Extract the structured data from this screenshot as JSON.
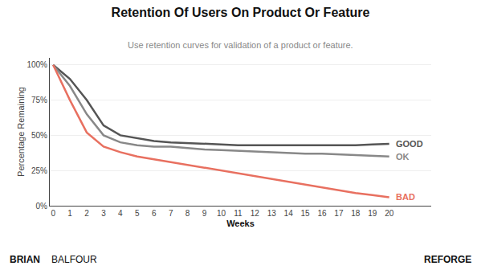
{
  "chart_data": {
    "type": "line",
    "title": "Retention Of Users On Product Or Feature",
    "subtitle": "Use retention curves for validation of a product or feature.",
    "xlabel": "Weeks",
    "ylabel": "Percentage Remaining",
    "annotations": [
      "BRIAN",
      "BALFOUR",
      "REFORGE"
    ],
    "x": [
      0,
      1,
      2,
      3,
      4,
      5,
      6,
      7,
      8,
      9,
      10,
      11,
      12,
      13,
      14,
      15,
      16,
      17,
      18,
      19,
      20
    ],
    "series": [
      {
        "name": "GOOD",
        "color": "#555555",
        "values": [
          100,
          90,
          75,
          57,
          50,
          48,
          46,
          45,
          44.5,
          44,
          43.5,
          43,
          43,
          43,
          43,
          43,
          43,
          43,
          43,
          43.5,
          44
        ]
      },
      {
        "name": "OK",
        "color": "#888888",
        "values": [
          100,
          85,
          65,
          50,
          45,
          43,
          42,
          42,
          41,
          40,
          39.5,
          39,
          38.5,
          38,
          37.5,
          37,
          37,
          36.5,
          36,
          35.5,
          35
        ]
      },
      {
        "name": "BAD",
        "color": "#e87060",
        "values": [
          100,
          75,
          52,
          42,
          38,
          35,
          33,
          31,
          29,
          27,
          25,
          23,
          21,
          19,
          17,
          15,
          13,
          11,
          9,
          7.5,
          6
        ]
      }
    ],
    "xlim": [
      -0.2,
      22.5
    ],
    "xticks": [
      0,
      1,
      2,
      3,
      4,
      5,
      6,
      7,
      8,
      9,
      10,
      11,
      12,
      13,
      14,
      15,
      16,
      17,
      18,
      19,
      20
    ],
    "ylim": [
      0,
      105
    ],
    "yticks": [
      {
        "value": 0,
        "label": "0%"
      },
      {
        "value": 25,
        "label": "25%"
      },
      {
        "value": 50,
        "label": "50%"
      },
      {
        "value": 75,
        "label": "75%"
      },
      {
        "value": 100,
        "label": "100%"
      }
    ],
    "grid": true
  }
}
